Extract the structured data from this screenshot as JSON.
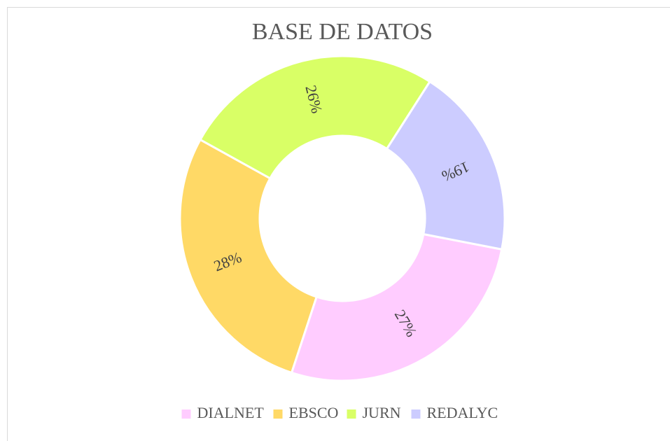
{
  "chart_data": {
    "type": "donut",
    "title": "BASE DE DATOS",
    "categories": [
      "DIALNET",
      "EBSCO",
      "JURN",
      "REDALYC"
    ],
    "values": [
      27,
      28,
      26,
      19
    ],
    "value_labels": [
      "27%",
      "28%",
      "26%",
      "19%"
    ],
    "colors": [
      "#ffccff",
      "#ffd966",
      "#d9ff66",
      "#ccccff"
    ],
    "start_angle": 101,
    "legend": "bottom"
  }
}
